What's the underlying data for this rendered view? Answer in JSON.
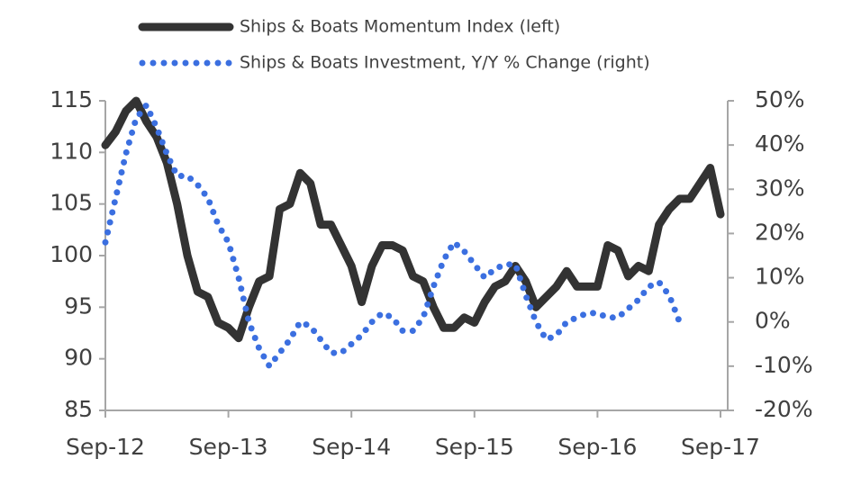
{
  "chart_data": {
    "type": "line",
    "categories": [
      "Sep-12",
      null,
      null,
      null,
      null,
      null,
      null,
      null,
      null,
      null,
      null,
      null,
      "Sep-13",
      null,
      null,
      null,
      null,
      null,
      null,
      null,
      null,
      null,
      null,
      null,
      "Sep-14",
      null,
      null,
      null,
      null,
      null,
      null,
      null,
      null,
      null,
      null,
      null,
      "Sep-15",
      null,
      null,
      null,
      null,
      null,
      null,
      null,
      null,
      null,
      null,
      null,
      "Sep-16",
      null,
      null,
      null,
      null,
      null,
      null,
      null,
      null,
      null,
      null,
      null,
      "Sep-17"
    ],
    "series": [
      {
        "name": "Ships & Boats Momentum Index (left)",
        "color": "#333333",
        "axis": "y",
        "values": [
          110.7,
          112,
          114,
          115,
          113,
          111.5,
          109,
          105,
          100,
          96.5,
          96,
          93.5,
          93,
          92,
          95,
          97.5,
          98,
          104.5,
          105,
          108,
          107,
          103,
          103,
          101,
          99,
          95.5,
          99,
          101,
          101,
          100.5,
          98,
          97.5,
          95,
          93,
          93,
          94,
          93.5,
          95.5,
          97,
          97.5,
          99,
          97.5,
          95,
          96,
          97,
          98.5,
          97,
          97,
          97,
          101,
          100.5,
          98,
          99,
          98.5,
          103,
          104.5,
          105.5,
          105.5,
          107,
          108.5,
          104
        ]
      },
      {
        "name": "Ships & Boats Investment, Y/Y % Change (right)",
        "color": "#3b6fe0",
        "axis": "y2",
        "values": [
          18,
          28,
          38,
          46,
          49,
          44,
          38,
          33,
          33,
          31,
          28,
          22,
          18,
          10,
          0,
          -6,
          -10,
          -7,
          -4,
          0,
          -1,
          -4,
          -7,
          -7,
          -5,
          -3,
          0,
          2,
          1,
          -2,
          -2,
          1,
          8,
          14,
          18,
          16,
          13,
          10,
          12,
          13,
          13,
          6,
          0,
          -4,
          -3,
          0,
          1,
          2,
          2,
          1,
          1,
          3,
          5,
          8,
          9,
          6,
          0,
          null,
          null,
          null,
          null
        ]
      }
    ],
    "ylim": [
      85,
      115
    ],
    "yticks": [
      85,
      90,
      95,
      100,
      105,
      110,
      115
    ],
    "y2lim": [
      -20,
      50
    ],
    "y2ticks": [
      {
        "value": -20,
        "label": "-20%"
      },
      {
        "value": -10,
        "label": "-10%"
      },
      {
        "value": 0,
        "label": "0%"
      },
      {
        "value": 10,
        "label": "10%"
      },
      {
        "value": 20,
        "label": "20%"
      },
      {
        "value": 30,
        "label": "30%"
      },
      {
        "value": 40,
        "label": "40%"
      },
      {
        "value": 50,
        "label": "50%"
      }
    ],
    "legend": "top"
  }
}
